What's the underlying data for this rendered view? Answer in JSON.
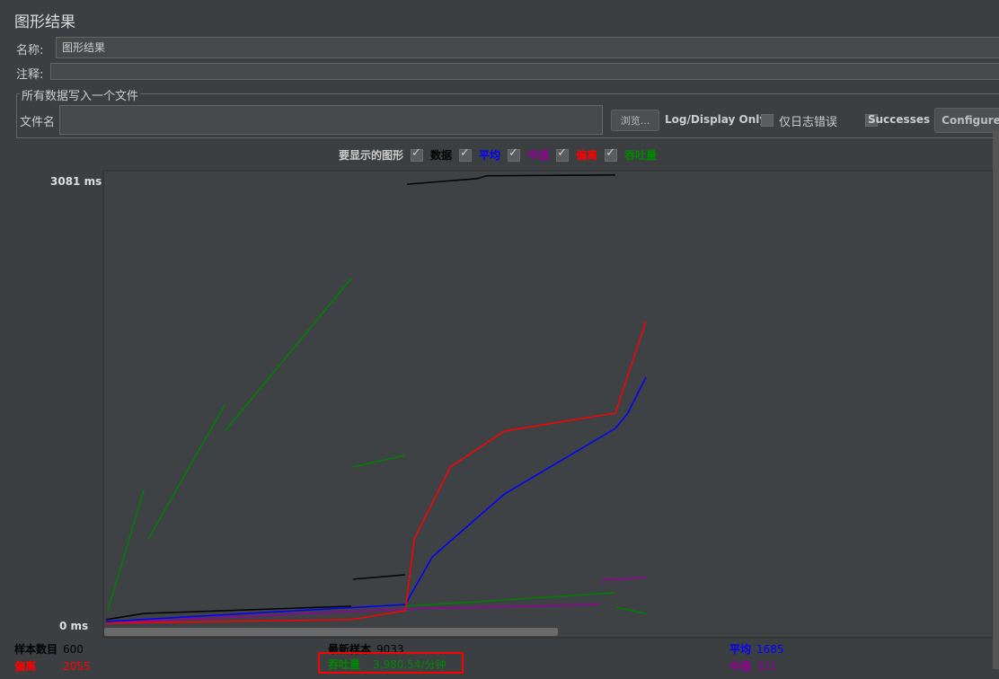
{
  "title": "图形结果",
  "name_label": "名称:",
  "name_value": "图形结果",
  "comment_label": "注释:",
  "file_group": "所有数据写入一个文件",
  "file_label": "文件名",
  "browse": "浏览...",
  "log_only": "Log/Display Only:",
  "errors_only": "仅日志错误",
  "successes": "Successes",
  "configure": "Configure",
  "legend_title": "要显示的图形",
  "legend": [
    {
      "label": "数据",
      "color": "#000000"
    },
    {
      "label": "平均",
      "color": "#0000ff"
    },
    {
      "label": "中值",
      "color": "#990099"
    },
    {
      "label": "偏离",
      "color": "#ff0000"
    },
    {
      "label": "吞吐量",
      "color": "#008000"
    }
  ],
  "stats": {
    "samples_label": "样本数目",
    "samples": "600",
    "latest_label": "最新样本",
    "latest": "9033",
    "avg_label": "平均",
    "avg": "1685",
    "dev_label": "偏离",
    "dev": "2055",
    "tp_label": "吞吐量",
    "tp": "3,980.54/分钟",
    "median_label": "中值",
    "median": "321"
  },
  "chart_data": {
    "type": "line",
    "ymax_label": "3081",
    "ymin_label": "0",
    "unit": "ms",
    "ylim": [
      0,
      3081
    ],
    "xlim": [
      0,
      600
    ],
    "series": [
      {
        "key": "data",
        "color": "#000000",
        "points": [
          [
            3,
            44
          ],
          [
            45,
            87
          ],
          [
            275,
            137
          ],
          [
            null,
            null
          ],
          [
            277,
            324
          ],
          [
            335,
            355
          ],
          [
            null,
            null
          ],
          [
            337,
            3062
          ],
          [
            415,
            3100
          ],
          [
            425,
            3120
          ],
          [
            568,
            3125
          ]
        ]
      },
      {
        "key": "avg",
        "color": "#0000ff",
        "points": [
          [
            3,
            31
          ],
          [
            335,
            149
          ],
          [
            365,
            479
          ],
          [
            445,
            915
          ],
          [
            568,
            1369
          ],
          [
            582,
            1475
          ],
          [
            602,
            1724
          ]
        ]
      },
      {
        "key": "median",
        "color": "#990099",
        "points": [
          [
            3,
            19
          ],
          [
            335,
            118
          ],
          [
            550,
            149
          ],
          [
            null,
            null
          ],
          [
            553,
            317
          ],
          [
            602,
            336
          ]
        ]
      },
      {
        "key": "deviation",
        "color": "#ff0000",
        "points": [
          [
            3,
            19
          ],
          [
            275,
            44
          ],
          [
            335,
            106
          ],
          [
            345,
            604
          ],
          [
            385,
            1102
          ],
          [
            445,
            1351
          ],
          [
            568,
            1475
          ],
          [
            602,
            2110
          ]
        ]
      },
      {
        "key": "throughput",
        "color": "#008000",
        "points": [
          [
            5,
            106
          ],
          [
            45,
            946
          ],
          [
            null,
            null
          ],
          [
            50,
            604
          ],
          [
            135,
            1537
          ],
          [
            null,
            null
          ],
          [
            135,
            1351
          ],
          [
            275,
            2408
          ],
          [
            null,
            null
          ],
          [
            277,
            1102
          ],
          [
            335,
            1183
          ],
          [
            null,
            null
          ],
          [
            335,
            137
          ],
          [
            568,
            230
          ],
          [
            null,
            null
          ],
          [
            568,
            131
          ],
          [
            602,
            87
          ]
        ]
      }
    ]
  }
}
